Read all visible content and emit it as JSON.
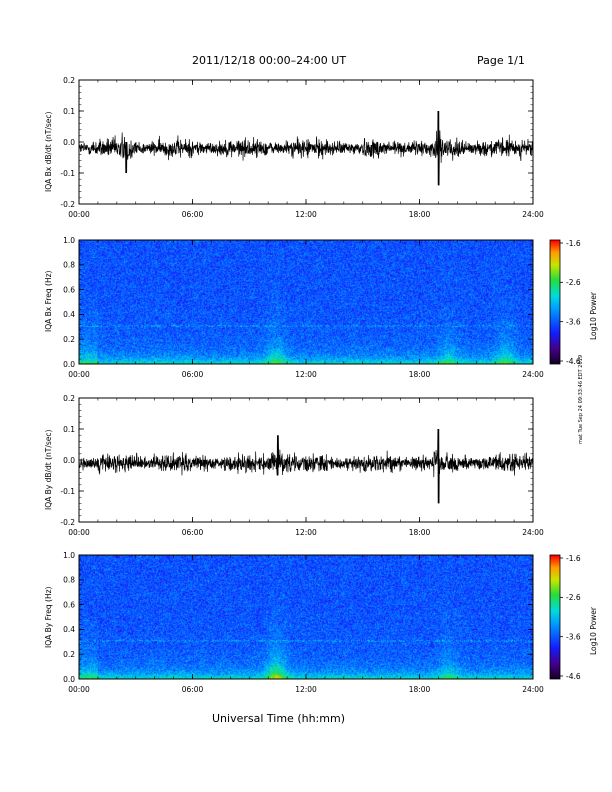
{
  "header": {
    "title": "2011/12/18  00:00–24:00 UT",
    "page": "Page 1/1"
  },
  "side_note": "mat Tue Sep 24 09:33:46 EDT 2019",
  "chart_data": [
    {
      "type": "line",
      "ylabel": "IQA Bx dB/dt (nT/sec)",
      "ylim": [
        -0.2,
        0.2
      ],
      "yticks": [
        "0.2",
        "0.1",
        "0.0",
        "-0.1",
        "-0.2"
      ],
      "xticks": [
        "00:00",
        "06:00",
        "12:00",
        "18:00",
        "24:00"
      ],
      "xlim_hours": [
        0,
        24
      ],
      "baseline": -0.02,
      "noise_level": 0.015,
      "events": [
        {
          "hour": 2.5,
          "min": -0.1,
          "max": 0.0
        },
        {
          "hour": 19.0,
          "min": -0.14,
          "max": 0.1
        }
      ]
    },
    {
      "type": "heatmap",
      "ylabel": "IQA Bx Freq (Hz)",
      "ylim": [
        0.0,
        1.0
      ],
      "yticks": [
        "1.0",
        "0.8",
        "0.6",
        "0.4",
        "0.2",
        "0.0"
      ],
      "xticks": [
        "00:00",
        "06:00",
        "12:00",
        "18:00",
        "24:00"
      ],
      "colorbar_label": "Log10 Power",
      "colorbar_ticks": [
        "-1.6",
        "-2.6",
        "-3.6",
        "-4.6"
      ],
      "enhancements": [
        {
          "hour": 10.4,
          "intensity": 0.6
        },
        {
          "hour": 19.5,
          "intensity": 0.5
        },
        {
          "hour": 22.5,
          "intensity": 0.6
        }
      ]
    },
    {
      "type": "line",
      "ylabel": "IQA By dB/dt (nT/sec)",
      "ylim": [
        -0.2,
        0.2
      ],
      "yticks": [
        "0.2",
        "0.1",
        "0.0",
        "-0.1",
        "-0.2"
      ],
      "xticks": [
        "00:00",
        "06:00",
        "12:00",
        "18:00",
        "24:00"
      ],
      "xlim_hours": [
        0,
        24
      ],
      "baseline": -0.01,
      "noise_level": 0.015,
      "events": [
        {
          "hour": 10.5,
          "min": -0.05,
          "max": 0.08
        },
        {
          "hour": 19.0,
          "min": -0.14,
          "max": 0.1
        }
      ]
    },
    {
      "type": "heatmap",
      "ylabel": "IQA By Freq (Hz)",
      "ylim": [
        0.0,
        1.0
      ],
      "yticks": [
        "1.0",
        "0.8",
        "0.6",
        "0.4",
        "0.2",
        "0.0"
      ],
      "xticks": [
        "00:00",
        "06:00",
        "12:00",
        "18:00",
        "24:00"
      ],
      "colorbar_label": "Log10 Power",
      "colorbar_ticks": [
        "-1.6",
        "-2.6",
        "-3.6",
        "-4.6"
      ],
      "enhancements": [
        {
          "hour": 10.4,
          "intensity": 1.0
        },
        {
          "hour": 19.5,
          "intensity": 0.5
        }
      ]
    }
  ],
  "xlabel": "Universal Time (hh:mm)"
}
